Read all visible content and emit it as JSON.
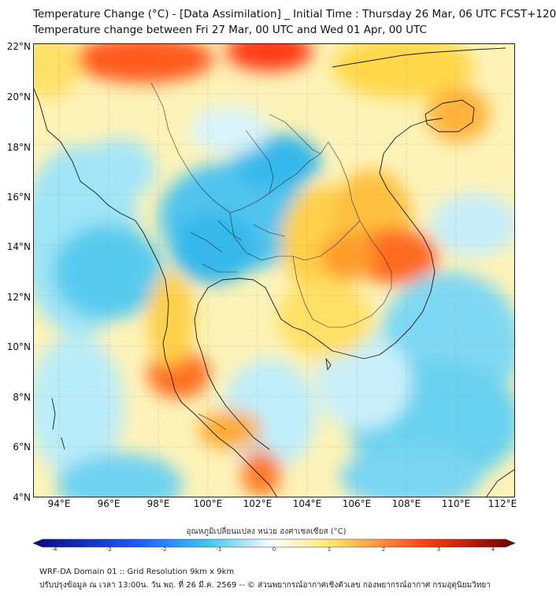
{
  "header": {
    "title_line1": "Temperature Change (°C) - [Data Assimilation] _ Initial Time : Thursday 26 Mar, 06 UTC FCST+120",
    "title_line2": "Temperature change between Fri 27 Mar, 00 UTC and Wed 01 Apr, 00 UTC"
  },
  "map": {
    "lat_labels": [
      "22°N",
      "20°N",
      "18°N",
      "16°N",
      "14°N",
      "12°N",
      "10°N",
      "8°N",
      "6°N",
      "4°N"
    ],
    "lon_labels": [
      "94°E",
      "96°E",
      "98°E",
      "100°E",
      "102°E",
      "104°E",
      "106°E",
      "108°E",
      "110°E",
      "112°E"
    ]
  },
  "colorbar": {
    "title": "อุณหภูมิเปลี่ยนแปลง หน่วย องศาเซลเซียส (°C)",
    "ticks": [
      "-4",
      "-3",
      "-2",
      "-1",
      "0",
      "1",
      "2",
      "3",
      "4"
    ],
    "colors": {
      "min": "#0a0a7a",
      "cold": "#1e5cff",
      "cool": "#3cc6f0",
      "neutral": "#ffffff",
      "warm": "#ffe66b",
      "hot": "#ff3a12",
      "max": "#6b0000"
    }
  },
  "footer": {
    "line1": "WRF-DA Domain 01 :: Grid Resolution 9km x 9km",
    "line2": "ปรับปรุงข้อมูล ณ เวลา 13:00น. วัน พฤ. ที่ 26 มี.ค. 2569 -- © ส่วนพยากรณ์อากาศเชิงตัวเลข กองพยากรณ์อากาศ กรมอุตุนิยมวิทยา"
  }
}
